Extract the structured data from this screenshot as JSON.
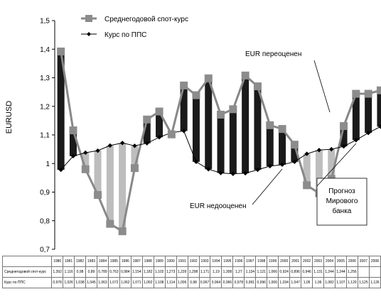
{
  "chart_data": {
    "type": "line",
    "ylabel": "EURUSD",
    "ylim": [
      0.7,
      1.5
    ],
    "yticks": [
      "0,7",
      "0,8",
      "0,9",
      "1",
      "1,1",
      "1,2",
      "1,3",
      "1,4",
      "1,5"
    ],
    "x": [
      "1980",
      "1981",
      "1982",
      "1983",
      "1984",
      "1985",
      "1986",
      "1987",
      "1988",
      "1989",
      "1990",
      "1991",
      "1992",
      "1993",
      "1994",
      "1995",
      "1996",
      "1997",
      "1998",
      "1999",
      "2000",
      "2001",
      "2002",
      "2003",
      "2004",
      "2005",
      "2006",
      "2007",
      "2008"
    ],
    "series": [
      {
        "name": "Среднегодовой спот-курс",
        "color": "#888888",
        "values": [
          1.392,
          1.116,
          0.98,
          0.89,
          0.789,
          0.763,
          0.984,
          1.154,
          1.182,
          1.102,
          1.273,
          1.239,
          1.298,
          1.171,
          1.19,
          1.308,
          1.27,
          1.134,
          1.121,
          1.066,
          0.924,
          0.896,
          0.946,
          1.131,
          1.244,
          1.244,
          1.256,
          null,
          null
        ],
        "labels": [
          "1,392",
          "1,116",
          "0,98",
          "0,89",
          "0,789",
          "0,763",
          "0,984",
          "1,154",
          "1,182",
          "1,102",
          "1,273",
          "1,239",
          "1,298",
          "1,171",
          "1,19",
          "1,308",
          "1,27",
          "1,134",
          "1,121",
          "1,066",
          "0,924",
          "0,896",
          "0,946",
          "1,131",
          "1,244",
          "1,244",
          "1,256",
          "",
          ""
        ]
      },
      {
        "name": "Курс по ППС",
        "color": "#000000",
        "values": [
          0.978,
          1.026,
          1.038,
          1.045,
          1.063,
          1.072,
          1.062,
          1.071,
          1.092,
          1.108,
          1.114,
          1.006,
          0.98,
          0.967,
          0.964,
          0.966,
          0.978,
          0.991,
          0.996,
          1.006,
          1.034,
          1.047,
          1.05,
          1.06,
          1.082,
          1.107,
          1.129,
          1.125,
          1.126
        ],
        "labels": [
          "0,978",
          "1,026",
          "1,038",
          "1,045",
          "1,063",
          "1,072",
          "1,062",
          "1,071",
          "1,092",
          "1,108",
          "1,114",
          "1,006",
          "0,98",
          "0,967",
          "0,964",
          "0,966",
          "0,978",
          "0,991",
          "0,996",
          "1,006",
          "1,034",
          "1,047",
          "1,05",
          "1,06",
          "1,082",
          "1,107",
          "1,129",
          "1,125",
          "1,126"
        ]
      }
    ],
    "annotations": [
      {
        "id": "over",
        "text": "EUR переоценен"
      },
      {
        "id": "under",
        "text": "EUR недооценен"
      },
      {
        "id": "forecast",
        "text": "Прогноз\nМирового\nбанка"
      }
    ],
    "colors": {
      "overvalued_bar": "#1a1a1a",
      "undervalued_bar": "#bdbdbd",
      "spot_line": "#888888",
      "ppp_line": "#000000",
      "marker": "#8c8c8c"
    },
    "legend_position": "top-left",
    "grid": false
  }
}
